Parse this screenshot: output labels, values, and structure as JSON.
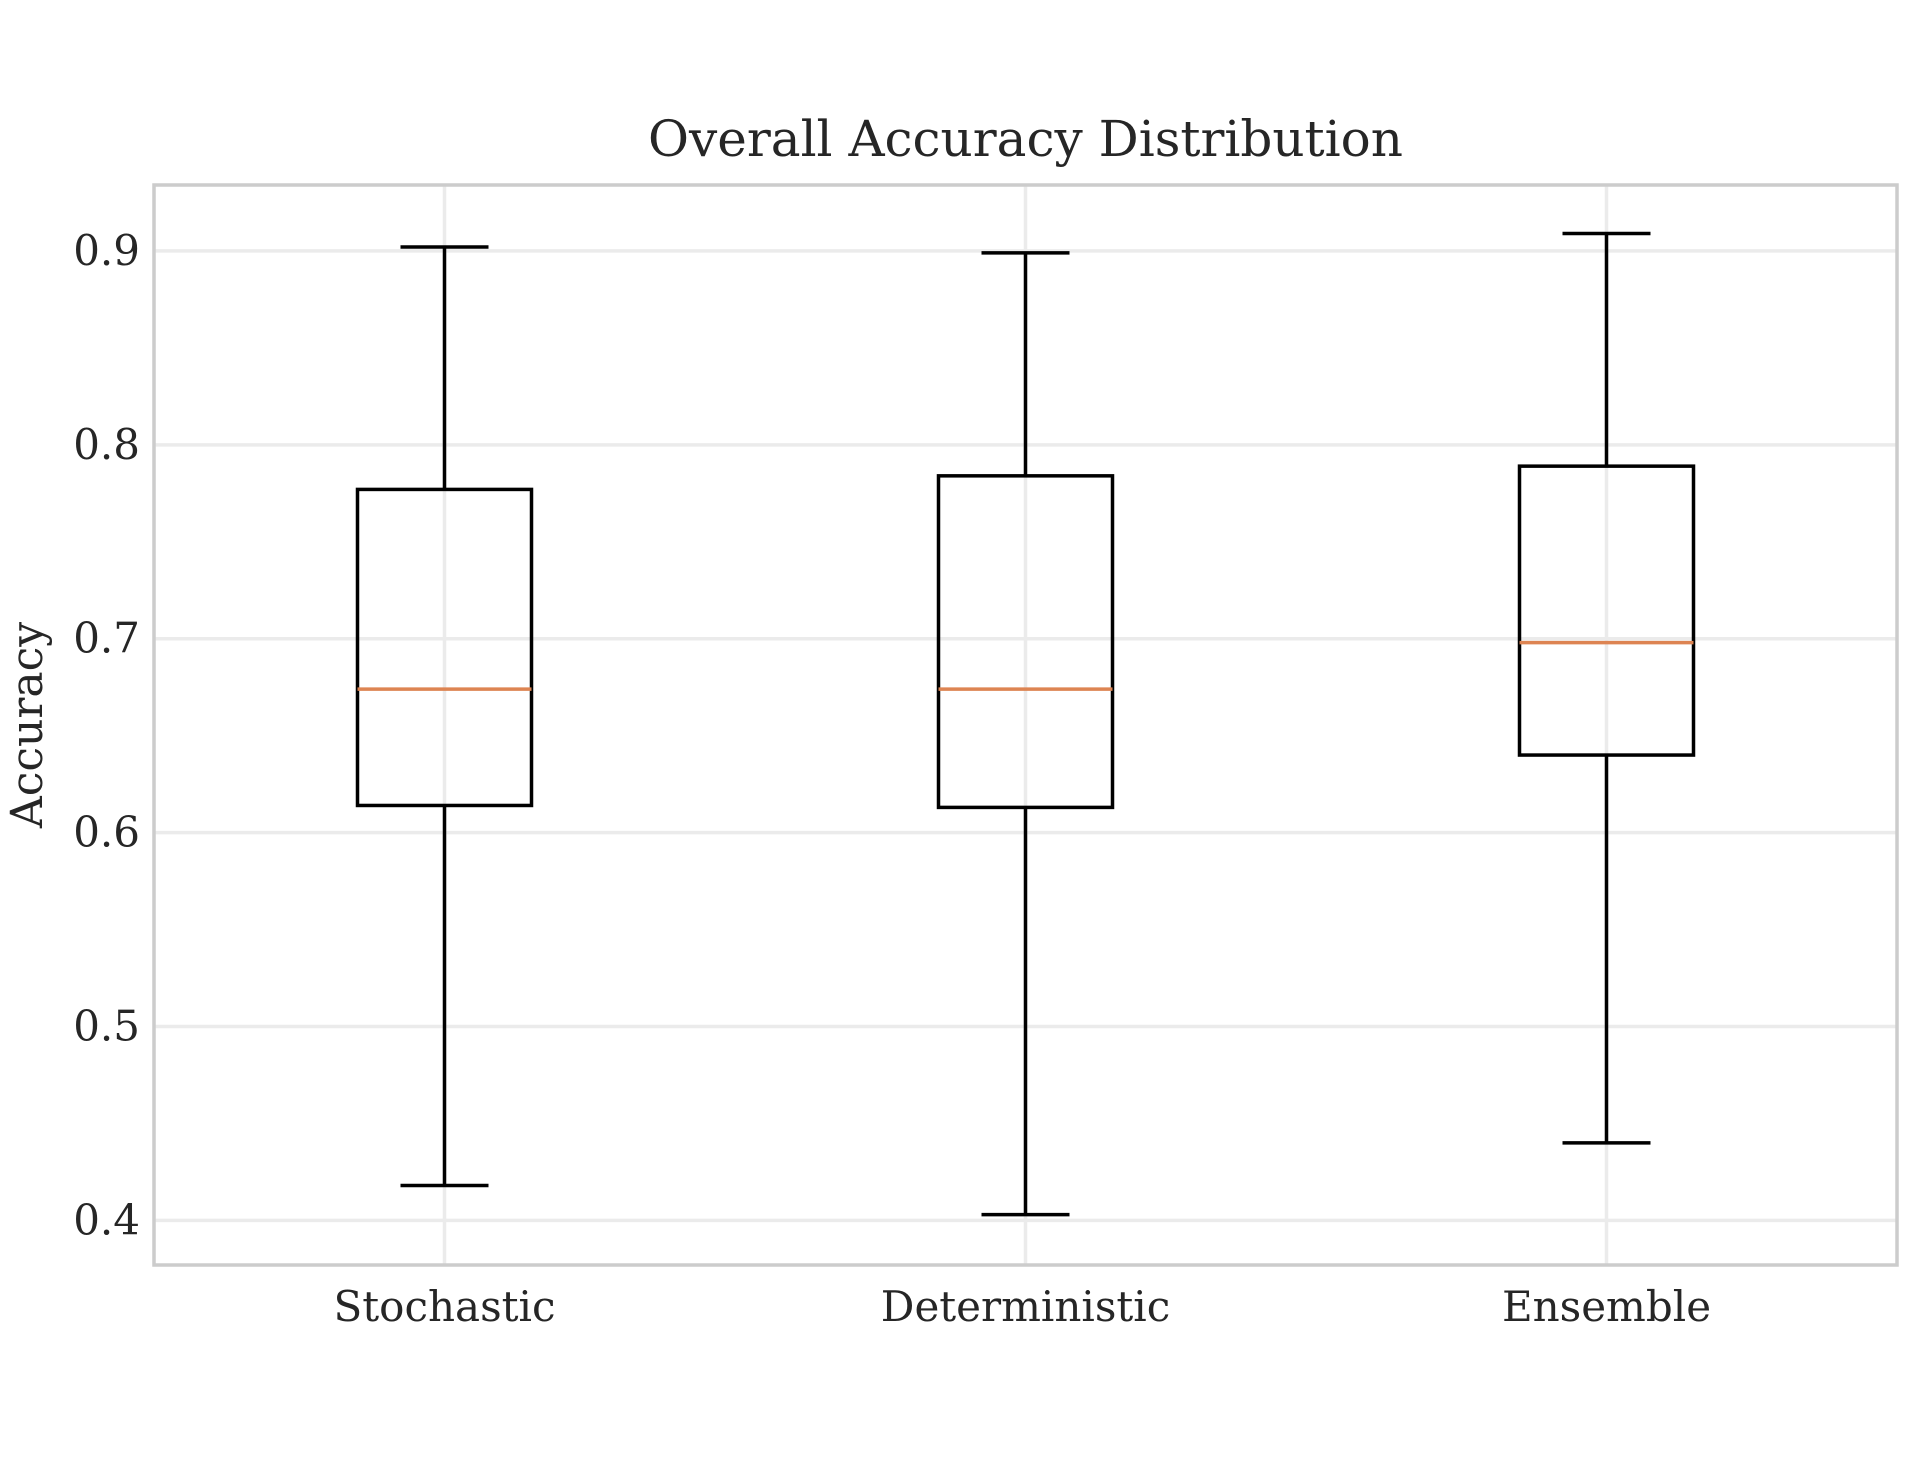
{
  "chart_data": {
    "type": "box",
    "title": "Overall Accuracy Distribution",
    "xlabel": "",
    "ylabel": "Accuracy",
    "categories": [
      "Stochastic",
      "Deterministic",
      "Ensemble"
    ],
    "boxes": [
      {
        "category": "Stochastic",
        "whisker_low": 0.418,
        "q1": 0.614,
        "median": 0.674,
        "q3": 0.777,
        "whisker_high": 0.902
      },
      {
        "category": "Deterministic",
        "whisker_low": 0.403,
        "q1": 0.613,
        "median": 0.674,
        "q3": 0.784,
        "whisker_high": 0.899
      },
      {
        "category": "Ensemble",
        "whisker_low": 0.44,
        "q1": 0.64,
        "median": 0.698,
        "q3": 0.789,
        "whisker_high": 0.909
      }
    ],
    "ylim": [
      0.377,
      0.934
    ],
    "yticks": [
      "0.4",
      "0.5",
      "0.6",
      "0.7",
      "0.8",
      "0.9"
    ],
    "grid": true,
    "colors": {
      "box": "#000000",
      "median": "#dd8452",
      "grid": "#ebebeb",
      "frame": "#cccccc",
      "text": "#262626"
    }
  }
}
